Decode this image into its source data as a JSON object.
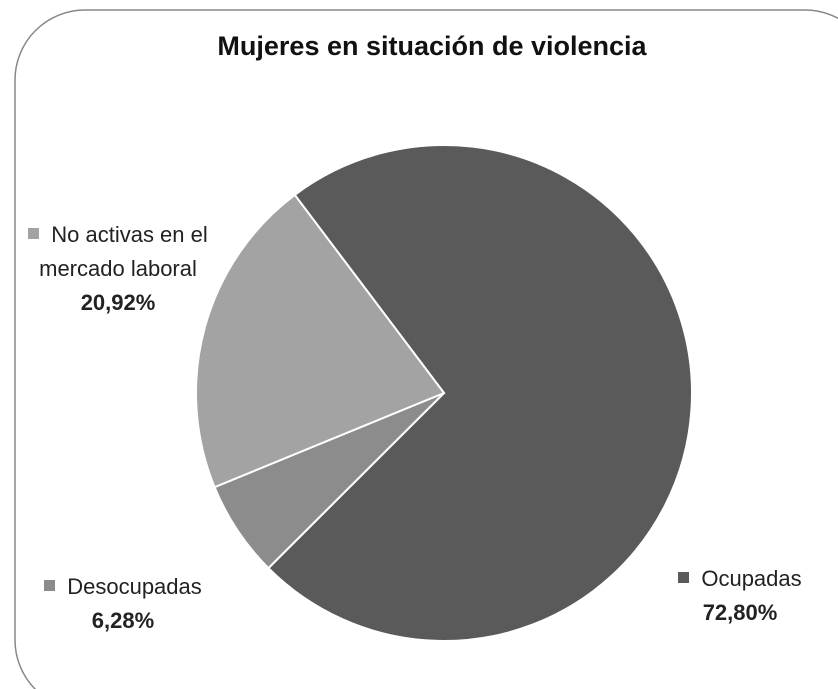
{
  "chart_data": {
    "type": "pie",
    "title": "Mujeres en situación de violencia",
    "categories": [
      "Ocupadas",
      "Desocupadas",
      "No activas en el mercado laboral"
    ],
    "values": [
      72.8,
      6.28,
      20.92
    ],
    "value_labels": [
      "72,80%",
      "6,28%",
      "20,92%"
    ],
    "colors": [
      "#5a5a5a",
      "#8c8c8c",
      "#a3a3a3"
    ]
  }
}
